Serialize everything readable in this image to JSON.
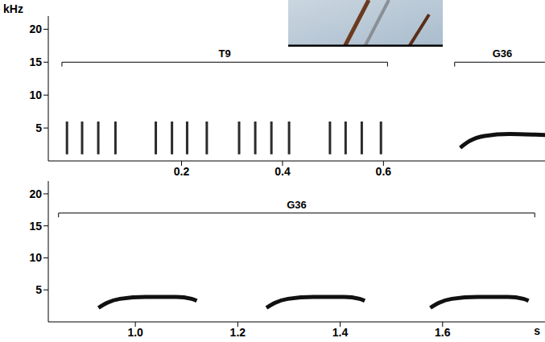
{
  "chart_data": [
    {
      "type": "line",
      "y_label": "kHz",
      "xlim": [
        -0.064,
        0.92
      ],
      "xticks": [
        0.2,
        0.4,
        0.6
      ],
      "ylim": [
        0,
        22
      ],
      "yticks": [
        5,
        10,
        15,
        20
      ],
      "series": [
        {
          "color": "#2b2b2b",
          "line_style": "solid",
          "x": [
            -0.027,
            -0.027,
            -0.027,
            0.003,
            0.003,
            0.003,
            0.035,
            0.035,
            0.035,
            0.069,
            0.069,
            0.069,
            0.149,
            0.149,
            0.149,
            0.181,
            0.181,
            0.181,
            0.211,
            0.211,
            0.211,
            0.25,
            0.25,
            0.25,
            0.314,
            0.314,
            0.314,
            0.346,
            0.346,
            0.346,
            0.378,
            0.378,
            0.378,
            0.413,
            0.413,
            0.413,
            0.494,
            0.494,
            0.494,
            0.525,
            0.525,
            0.525,
            0.557,
            0.557,
            0.557,
            0.595,
            0.595,
            0.595
          ],
          "values": [
            1,
            6,
            null,
            1,
            6,
            null,
            1,
            6,
            null,
            1,
            6,
            null,
            1,
            6,
            null,
            1,
            6,
            null,
            1,
            6,
            null,
            1,
            6,
            null,
            1,
            6,
            null,
            1,
            6,
            null,
            1,
            6,
            null,
            1,
            6,
            null,
            1,
            6,
            null,
            1,
            6,
            null,
            1,
            6,
            null,
            1,
            6,
            null
          ]
        },
        {
          "color": "#111111",
          "line_style": "solid",
          "x": [
            0.752,
            0.77,
            0.8,
            0.85,
            0.9,
            0.93
          ],
          "values": [
            2.0,
            3.0,
            3.8,
            4.1,
            4.0,
            3.9
          ]
        }
      ],
      "annotations": [
        {
          "text": "T9",
          "x": [
            -0.037,
            0.608
          ],
          "y": 15
        },
        {
          "text": "G36",
          "x": [
            0.741,
            0.93
          ],
          "y": 15
        }
      ]
    },
    {
      "type": "line",
      "x_label": "s",
      "xlim": [
        0.83,
        1.8
      ],
      "xticks": [
        {
          "value": 1,
          "label": "1.0"
        },
        1.2,
        1.4,
        1.6
      ],
      "ylim": [
        0,
        22
      ],
      "yticks": [
        5,
        10,
        15,
        20
      ],
      "series": [
        {
          "color": "#111111",
          "line_style": "solid",
          "x": [
            0.928,
            0.945,
            0.97,
            1.02,
            1.08,
            1.11,
            1.12,
            1.12,
            1.256,
            1.273,
            1.298,
            1.348,
            1.408,
            1.438,
            1.448,
            1.448,
            1.576,
            1.593,
            1.618,
            1.668,
            1.728,
            1.758,
            1.768
          ],
          "values": [
            2.2,
            3.0,
            3.6,
            3.9,
            3.9,
            3.6,
            3.3,
            null,
            2.2,
            3.0,
            3.6,
            3.9,
            3.9,
            3.6,
            3.3,
            null,
            2.2,
            3.0,
            3.6,
            3.9,
            3.9,
            3.6,
            3.3
          ]
        }
      ],
      "annotations": [
        {
          "text": "G36",
          "x": [
            0.85,
            1.78
          ],
          "y": 17
        }
      ]
    }
  ]
}
